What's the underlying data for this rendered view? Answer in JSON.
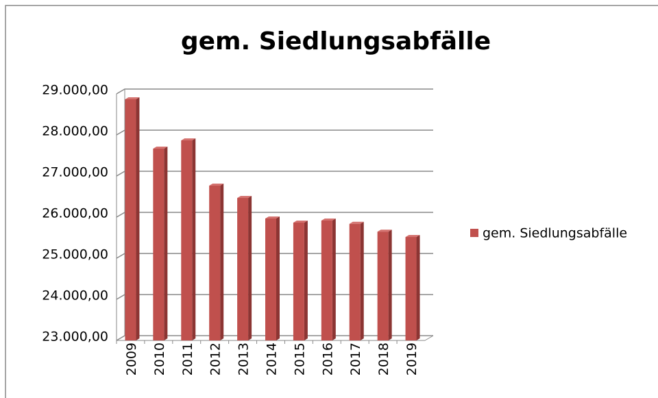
{
  "chart_data": {
    "type": "bar3d",
    "title": "gem. Siedlungsabfälle",
    "categories": [
      "2009",
      "2010",
      "2011",
      "2012",
      "2013",
      "2014",
      "2015",
      "2016",
      "2017",
      "2018",
      "2019"
    ],
    "series": [
      {
        "name": "gem. Siedlungsabfälle",
        "color": "#c0504d",
        "values": [
          28900,
          27700,
          27900,
          26800,
          26500,
          26000,
          25900,
          25950,
          25870,
          25680,
          25550
        ]
      }
    ],
    "ylim": [
      23000,
      29000
    ],
    "yticks": [
      {
        "value": 23000,
        "label": "23.000,00"
      },
      {
        "value": 24000,
        "label": "24.000,00"
      },
      {
        "value": 25000,
        "label": "25.000,00"
      },
      {
        "value": 26000,
        "label": "26.000,00"
      },
      {
        "value": 27000,
        "label": "27.000,00"
      },
      {
        "value": 28000,
        "label": "28.000,00"
      },
      {
        "value": 29000,
        "label": "29.000,00"
      }
    ],
    "grid": true,
    "legend": "right"
  }
}
